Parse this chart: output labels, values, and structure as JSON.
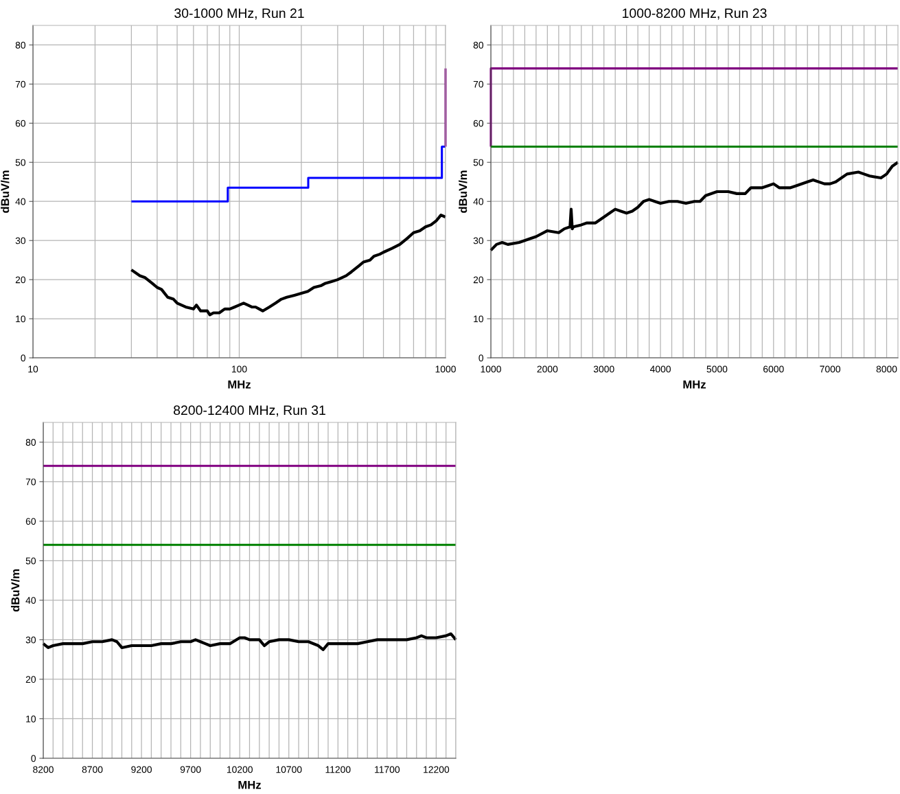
{
  "chart_data": [
    {
      "type": "line",
      "title": "30-1000 MHz, Run 21",
      "xlabel": "MHz",
      "ylabel": "dBuV/m",
      "log": "x",
      "grid": true,
      "xlim": [
        10,
        1000
      ],
      "xticks": [
        10,
        {
          "value": 20,
          "label": null
        },
        {
          "value": 30,
          "label": null
        },
        {
          "value": 40,
          "label": null
        },
        {
          "value": 50,
          "label": null
        },
        {
          "value": 60,
          "label": null
        },
        {
          "value": 70,
          "label": null
        },
        {
          "value": 80,
          "label": null
        },
        {
          "value": 90,
          "label": null
        },
        100,
        {
          "value": 200,
          "label": null
        },
        {
          "value": 300,
          "label": null
        },
        {
          "value": 400,
          "label": null
        },
        {
          "value": 500,
          "label": null
        },
        {
          "value": 600,
          "label": null
        },
        {
          "value": 700,
          "label": null
        },
        {
          "value": 800,
          "label": null
        },
        {
          "value": 900,
          "label": null
        },
        1000
      ],
      "ylim": [
        0,
        85
      ],
      "yticks": [
        0,
        10,
        20,
        30,
        40,
        50,
        60,
        70,
        80
      ],
      "series": [
        {
          "color": "#0000ff",
          "x": [
            30,
            88,
            88,
            216,
            216,
            960,
            960,
            1000
          ],
          "values": [
            40,
            40,
            43.5,
            43.5,
            46,
            46,
            54,
            54
          ]
        },
        {
          "color": "#800080",
          "x": [
            1000,
            1000
          ],
          "values": [
            54,
            74
          ]
        },
        {
          "color": "#000000",
          "x": [
            30,
            33,
            35,
            38,
            40,
            42,
            45,
            48,
            50,
            55,
            60,
            62,
            65,
            70,
            72,
            75,
            80,
            85,
            90,
            95,
            100,
            105,
            110,
            115,
            120,
            125,
            130,
            140,
            150,
            160,
            170,
            185,
            200,
            215,
            230,
            250,
            260,
            280,
            300,
            330,
            350,
            380,
            400,
            430,
            450,
            480,
            500,
            550,
            600,
            650,
            700,
            750,
            800,
            850,
            900,
            950,
            1000
          ],
          "values": [
            22.5,
            21,
            20.5,
            19,
            18,
            17.5,
            15.5,
            15,
            14,
            13,
            12.5,
            13.5,
            12,
            12,
            11,
            11.5,
            11.5,
            12.5,
            12.5,
            13,
            13.5,
            14,
            13.5,
            13,
            13,
            12.5,
            12,
            13,
            14,
            15,
            15.5,
            16,
            16.5,
            17,
            18,
            18.5,
            19,
            19.5,
            20,
            21,
            22,
            23.5,
            24.5,
            25,
            26,
            26.5,
            27,
            28,
            29,
            30.5,
            32,
            32.5,
            33.5,
            34,
            35,
            36.5,
            36
          ]
        }
      ]
    },
    {
      "type": "line",
      "title": "1000-8200 MHz, Run 23",
      "xlabel": "MHz",
      "ylabel": "dBuV/m",
      "grid": true,
      "xlim": [
        1000,
        8200
      ],
      "xticks": [
        1000,
        {
          "value": 1200,
          "label": null
        },
        {
          "value": 1400,
          "label": null
        },
        {
          "value": 1600,
          "label": null
        },
        {
          "value": 1800,
          "label": null
        },
        2000,
        {
          "value": 2200,
          "label": null
        },
        {
          "value": 2400,
          "label": null
        },
        {
          "value": 2600,
          "label": null
        },
        {
          "value": 2800,
          "label": null
        },
        3000,
        {
          "value": 3200,
          "label": null
        },
        {
          "value": 3400,
          "label": null
        },
        {
          "value": 3600,
          "label": null
        },
        {
          "value": 3800,
          "label": null
        },
        4000,
        {
          "value": 4200,
          "label": null
        },
        {
          "value": 4400,
          "label": null
        },
        {
          "value": 4600,
          "label": null
        },
        {
          "value": 4800,
          "label": null
        },
        5000,
        {
          "value": 5200,
          "label": null
        },
        {
          "value": 5400,
          "label": null
        },
        {
          "value": 5600,
          "label": null
        },
        {
          "value": 5800,
          "label": null
        },
        6000,
        {
          "value": 6200,
          "label": null
        },
        {
          "value": 6400,
          "label": null
        },
        {
          "value": 6600,
          "label": null
        },
        {
          "value": 6800,
          "label": null
        },
        7000,
        {
          "value": 7200,
          "label": null
        },
        {
          "value": 7400,
          "label": null
        },
        {
          "value": 7600,
          "label": null
        },
        {
          "value": 7800,
          "label": null
        },
        8000
      ],
      "ylim": [
        0,
        85
      ],
      "yticks": [
        0,
        10,
        20,
        30,
        40,
        50,
        60,
        70,
        80
      ],
      "series": [
        {
          "color": "#800080",
          "x": [
            1000,
            1000,
            8200
          ],
          "values": [
            54,
            74,
            74
          ]
        },
        {
          "color": "#008000",
          "x": [
            1000,
            8200
          ],
          "values": [
            54,
            54
          ]
        },
        {
          "color": "#000000",
          "x": [
            1000,
            1100,
            1200,
            1300,
            1500,
            1700,
            1800,
            2000,
            2200,
            2300,
            2400,
            2420,
            2440,
            2460,
            2600,
            2700,
            2850,
            3000,
            3100,
            3200,
            3300,
            3400,
            3500,
            3600,
            3700,
            3800,
            3900,
            4000,
            4150,
            4300,
            4450,
            4600,
            4700,
            4800,
            5000,
            5200,
            5350,
            5500,
            5600,
            5800,
            5900,
            6000,
            6100,
            6300,
            6400,
            6600,
            6700,
            6900,
            7000,
            7100,
            7300,
            7500,
            7600,
            7700,
            7900,
            8000,
            8100,
            8200
          ],
          "values": [
            27.5,
            29,
            29.5,
            29,
            29.5,
            30.5,
            31,
            32.5,
            32,
            33,
            33.5,
            38,
            33,
            33.5,
            34,
            34.5,
            34.5,
            36,
            37,
            38,
            37.5,
            37,
            37.5,
            38.5,
            40,
            40.5,
            40,
            39.5,
            40,
            40,
            39.5,
            40,
            40,
            41.5,
            42.5,
            42.5,
            42,
            42,
            43.5,
            43.5,
            44,
            44.5,
            43.5,
            43.5,
            44,
            45,
            45.5,
            44.5,
            44.5,
            45,
            47,
            47.5,
            47,
            46.5,
            46,
            47,
            49,
            50
          ]
        }
      ]
    },
    {
      "type": "line",
      "title": "8200-12400 MHz, Run 31",
      "xlabel": "MHz",
      "ylabel": "dBuV/m",
      "grid": true,
      "xlim": [
        8200,
        12400
      ],
      "xticks": [
        8200,
        {
          "value": 8300,
          "label": null
        },
        {
          "value": 8400,
          "label": null
        },
        {
          "value": 8500,
          "label": null
        },
        {
          "value": 8600,
          "label": null
        },
        8700,
        {
          "value": 8800,
          "label": null
        },
        {
          "value": 8900,
          "label": null
        },
        {
          "value": 9000,
          "label": null
        },
        {
          "value": 9100,
          "label": null
        },
        9200,
        {
          "value": 9300,
          "label": null
        },
        {
          "value": 9400,
          "label": null
        },
        {
          "value": 9500,
          "label": null
        },
        {
          "value": 9600,
          "label": null
        },
        9700,
        {
          "value": 9800,
          "label": null
        },
        {
          "value": 9900,
          "label": null
        },
        {
          "value": 10000,
          "label": null
        },
        {
          "value": 10100,
          "label": null
        },
        10200,
        {
          "value": 10300,
          "label": null
        },
        {
          "value": 10400,
          "label": null
        },
        {
          "value": 10500,
          "label": null
        },
        {
          "value": 10600,
          "label": null
        },
        10700,
        {
          "value": 10800,
          "label": null
        },
        {
          "value": 10900,
          "label": null
        },
        {
          "value": 11000,
          "label": null
        },
        {
          "value": 11100,
          "label": null
        },
        11200,
        {
          "value": 11300,
          "label": null
        },
        {
          "value": 11400,
          "label": null
        },
        {
          "value": 11500,
          "label": null
        },
        {
          "value": 11600,
          "label": null
        },
        11700,
        {
          "value": 11800,
          "label": null
        },
        {
          "value": 11900,
          "label": null
        },
        {
          "value": 12000,
          "label": null
        },
        {
          "value": 12100,
          "label": null
        },
        12200,
        {
          "value": 12300,
          "label": null
        },
        {
          "value": 12400,
          "label": null
        }
      ],
      "ylim": [
        0,
        85
      ],
      "yticks": [
        0,
        10,
        20,
        30,
        40,
        50,
        60,
        70,
        80
      ],
      "series": [
        {
          "color": "#800080",
          "x": [
            8200,
            12400
          ],
          "values": [
            74,
            74
          ]
        },
        {
          "color": "#008000",
          "x": [
            8200,
            12400
          ],
          "values": [
            54,
            54
          ]
        },
        {
          "color": "#000000",
          "x": [
            8200,
            8250,
            8300,
            8400,
            8500,
            8600,
            8700,
            8800,
            8900,
            8950,
            9000,
            9100,
            9200,
            9300,
            9400,
            9500,
            9600,
            9700,
            9750,
            9800,
            9850,
            9900,
            10000,
            10100,
            10200,
            10250,
            10300,
            10400,
            10450,
            10500,
            10600,
            10700,
            10800,
            10900,
            11000,
            11050,
            11100,
            11200,
            11300,
            11400,
            11500,
            11600,
            11700,
            11800,
            11900,
            12000,
            12050,
            12100,
            12200,
            12300,
            12350,
            12400
          ],
          "values": [
            29,
            28,
            28.5,
            29,
            29,
            29,
            29.5,
            29.5,
            30,
            29.5,
            28,
            28.5,
            28.5,
            28.5,
            29,
            29,
            29.5,
            29.5,
            30,
            29.5,
            29,
            28.5,
            29,
            29,
            30.5,
            30.5,
            30,
            30,
            28.5,
            29.5,
            30,
            30,
            29.5,
            29.5,
            28.5,
            27.5,
            29,
            29,
            29,
            29,
            29.5,
            30,
            30,
            30,
            30,
            30.5,
            31,
            30.5,
            30.5,
            31,
            31.5,
            30
          ]
        }
      ]
    }
  ]
}
